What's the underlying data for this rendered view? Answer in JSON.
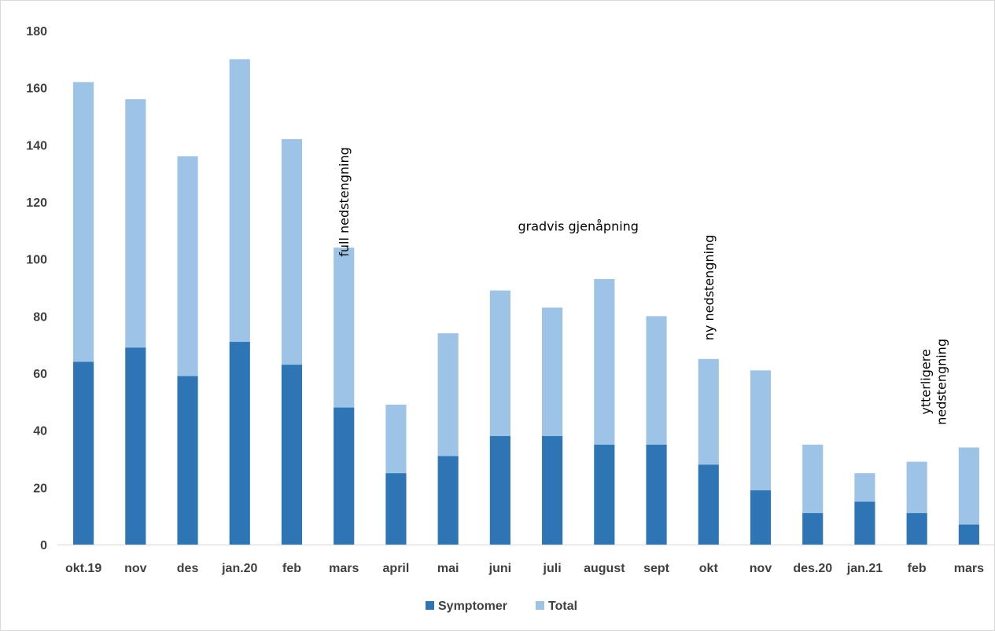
{
  "chart_data": {
    "type": "bar",
    "stacked": true,
    "title": "",
    "xlabel": "",
    "ylabel": "",
    "ylim": [
      0,
      180
    ],
    "yticks": [
      0,
      20,
      40,
      60,
      80,
      100,
      120,
      140,
      160,
      180
    ],
    "grid": false,
    "legend": "bottom",
    "categories": [
      "okt.19",
      "nov",
      "des",
      "jan.20",
      "feb",
      "mars",
      "april",
      "mai",
      "juni",
      "juli",
      "august",
      "sept",
      "okt",
      "nov",
      "des.20",
      "jan.21",
      "feb",
      "mars"
    ],
    "series": [
      {
        "name": "Symptomer",
        "color": "#2e75b6",
        "values": [
          64,
          69,
          59,
          71,
          63,
          48,
          25,
          31,
          38,
          38,
          35,
          35,
          28,
          19,
          11,
          15,
          11,
          7
        ]
      },
      {
        "name": "Total",
        "color": "#9dc3e6",
        "values": [
          162,
          156,
          136,
          170,
          142,
          104,
          49,
          74,
          89,
          83,
          93,
          80,
          65,
          61,
          35,
          25,
          29,
          34
        ]
      }
    ],
    "annotations": [
      {
        "text": "full nedstengning",
        "category_index": 5,
        "y": 120,
        "rotated": true
      },
      {
        "text": "gradvis gjenåpning",
        "category_index": 9.5,
        "y": 110,
        "rotated": false
      },
      {
        "text": "ny nedstengning",
        "category_index": 12,
        "y": 90,
        "rotated": true
      },
      {
        "text": "ytterligere nedstengning",
        "category_index": 16.2,
        "y": 57,
        "rotated": true
      }
    ]
  }
}
